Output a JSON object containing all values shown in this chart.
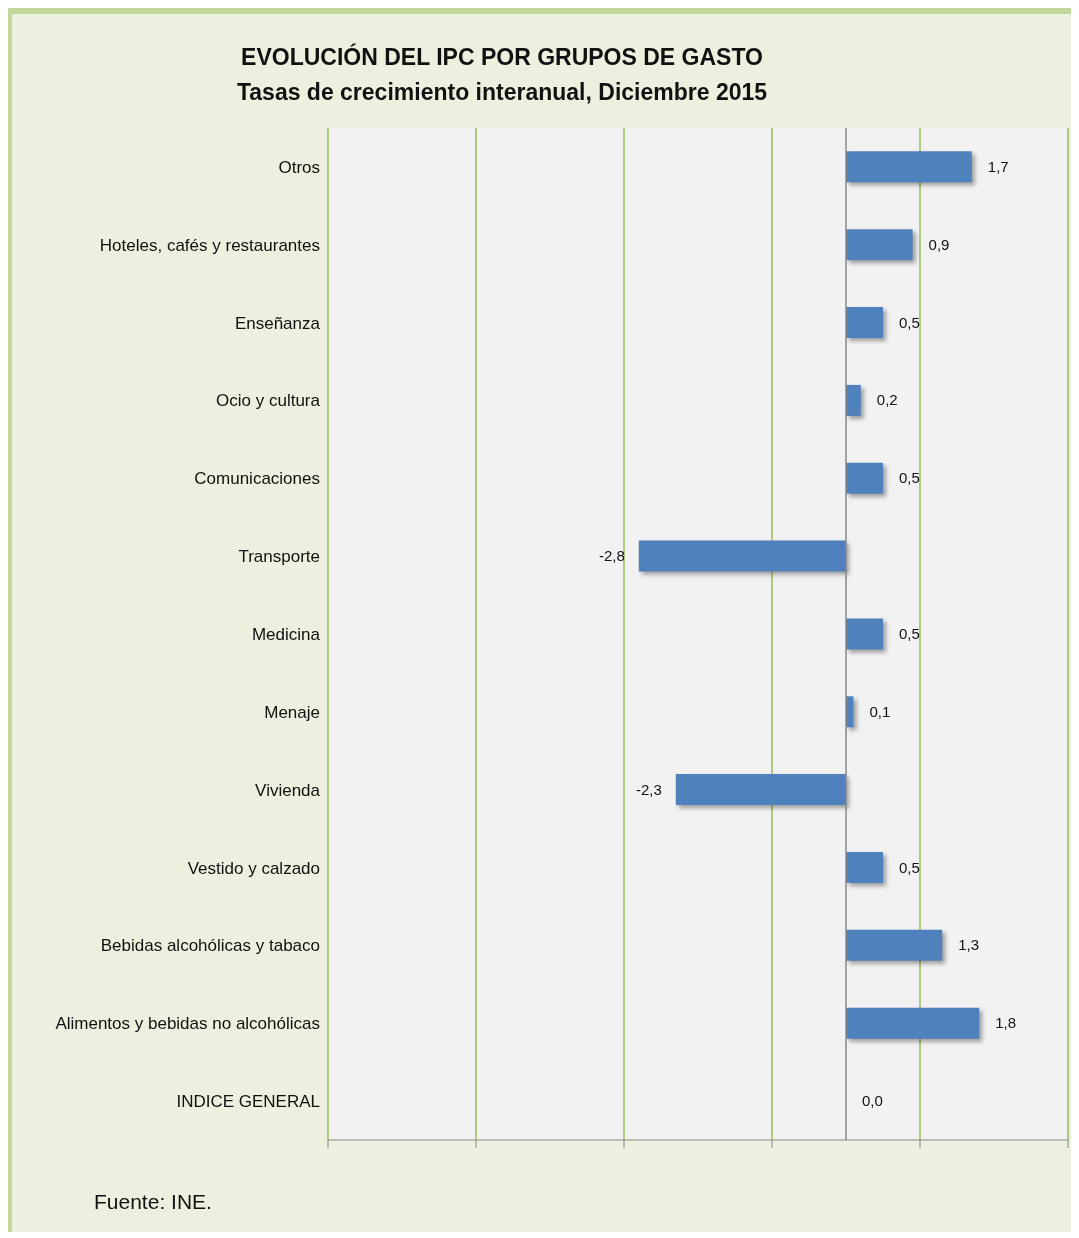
{
  "chart_data": {
    "type": "bar",
    "orientation": "horizontal",
    "title": "EVOLUCIÓN DEL IPC POR GRUPOS DE GASTO",
    "subtitle": "Tasas de crecimiento interanual, Diciembre 2015",
    "categories": [
      "Otros",
      "Hoteles, cafés y restaurantes",
      "Enseñanza",
      "Ocio y cultura",
      "Comunicaciones",
      "Transporte",
      "Medicina",
      "Menaje",
      "Vivienda",
      "Vestido y calzado",
      "Bebidas alcohólicas y tabaco",
      "Alimentos y bebidas no alcohólicas",
      "INDICE GENERAL"
    ],
    "values": [
      1.7,
      0.9,
      0.5,
      0.2,
      0.5,
      -2.8,
      0.5,
      0.1,
      -2.3,
      0.5,
      1.3,
      1.8,
      0.0
    ],
    "value_labels": [
      "1,7",
      "0,9",
      "0,5",
      "0,2",
      "0,5",
      "-2,8",
      "0,5",
      "0,1",
      "-2,3",
      "0,5",
      "1,3",
      "1,8",
      "0,0"
    ],
    "color": "#4f81bd",
    "xlim": [
      -7,
      3
    ],
    "xticks": [
      {
        "value": -7,
        "label": null
      },
      {
        "value": -5,
        "label": null
      },
      {
        "value": -3,
        "label": null
      },
      {
        "value": -1,
        "label": null
      },
      {
        "value": 1,
        "label": null
      },
      {
        "value": 3,
        "label": null
      }
    ],
    "tick_labels": "y",
    "grid": "x",
    "legend": false,
    "annotations": [
      "Fuente: INE."
    ]
  }
}
